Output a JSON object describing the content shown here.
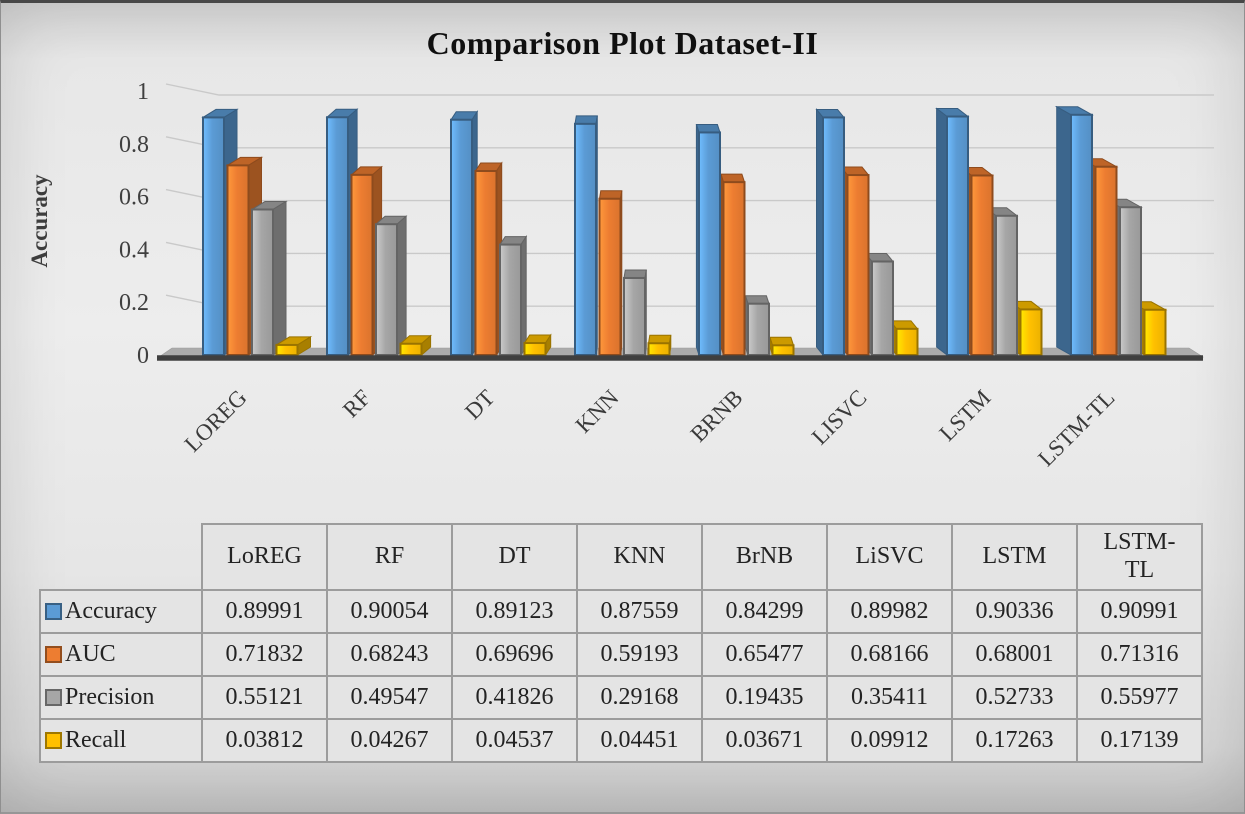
{
  "chart_data": {
    "type": "bar",
    "style": "3d-clustered-column",
    "title": "Comparison Plot Dataset-II",
    "xlabel": "",
    "ylabel": "Accuracy",
    "ylim": [
      0,
      1
    ],
    "yticks": [
      0,
      0.2,
      0.4,
      0.6,
      0.8,
      1
    ],
    "grid": true,
    "legend_position": "table-row-labels",
    "categories_axis": [
      "LOREG",
      "RF",
      "DT",
      "KNN",
      "BRNB",
      "LISVC",
      "LSTM",
      "LSTM-TL"
    ],
    "categories_table": [
      "LoREG",
      "RF",
      "DT",
      "KNN",
      "BrNB",
      "LiSVC",
      "LSTM",
      "LSTM-TL"
    ],
    "series": [
      {
        "name": "Accuracy",
        "color": "#5B9BD5",
        "values": [
          0.89991,
          0.90054,
          0.89123,
          0.87559,
          0.84299,
          0.89982,
          0.90336,
          0.90991
        ]
      },
      {
        "name": "AUC",
        "color": "#ED7D31",
        "values": [
          0.71832,
          0.68243,
          0.69696,
          0.59193,
          0.65477,
          0.68166,
          0.68001,
          0.71316
        ]
      },
      {
        "name": "Precision",
        "color": "#A6A6A6",
        "values": [
          0.55121,
          0.49547,
          0.41826,
          0.29168,
          0.19435,
          0.35411,
          0.52733,
          0.55977
        ]
      },
      {
        "name": "Recall",
        "color": "#FFC000",
        "values": [
          0.03812,
          0.04267,
          0.04537,
          0.04451,
          0.03671,
          0.09912,
          0.17263,
          0.17139
        ]
      }
    ],
    "value_decimals": 5,
    "colors": {
      "gridline": "#c9c9c9",
      "floor_fill": "#ababab",
      "base_line": "#3f3f3f",
      "axis_text": "#3f3f3f",
      "title_text": "#101010"
    }
  }
}
